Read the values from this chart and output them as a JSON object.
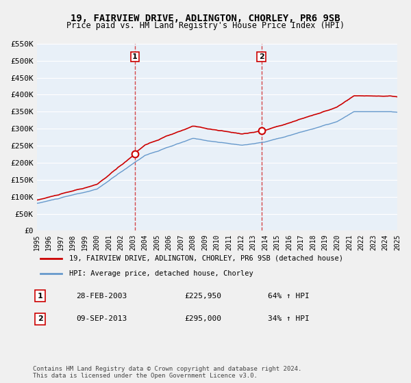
{
  "title": "19, FAIRVIEW DRIVE, ADLINGTON, CHORLEY, PR6 9SB",
  "subtitle": "Price paid vs. HM Land Registry's House Price Index (HPI)",
  "ylabel_ticks": [
    "£0",
    "£50K",
    "£100K",
    "£150K",
    "£200K",
    "£250K",
    "£300K",
    "£350K",
    "£400K",
    "£450K",
    "£500K",
    "£550K"
  ],
  "ylabel_values": [
    0,
    50000,
    100000,
    150000,
    200000,
    250000,
    300000,
    350000,
    400000,
    450000,
    500000,
    550000
  ],
  "xmin": 1995,
  "xmax": 2025,
  "ymin": 0,
  "ymax": 550000,
  "sale1_date": 2003.16,
  "sale1_price": 225950,
  "sale1_label": "1",
  "sale1_text": "28-FEB-2003    £225,950    64% ↑ HPI",
  "sale2_date": 2013.69,
  "sale2_price": 295000,
  "sale2_label": "2",
  "sale2_text": "09-SEP-2013    £295,000    34% ↑ HPI",
  "legend_line1": "19, FAIRVIEW DRIVE, ADLINGTON, CHORLEY, PR6 9SB (detached house)",
  "legend_line2": "HPI: Average price, detached house, Chorley",
  "footer": "Contains HM Land Registry data © Crown copyright and database right 2024.\nThis data is licensed under the Open Government Licence v3.0.",
  "line_color_red": "#cc0000",
  "line_color_blue": "#6699cc",
  "dashed_color": "#cc0000",
  "bg_color": "#e8f0f8",
  "plot_bg": "#e8f0f8",
  "grid_color": "#ffffff"
}
